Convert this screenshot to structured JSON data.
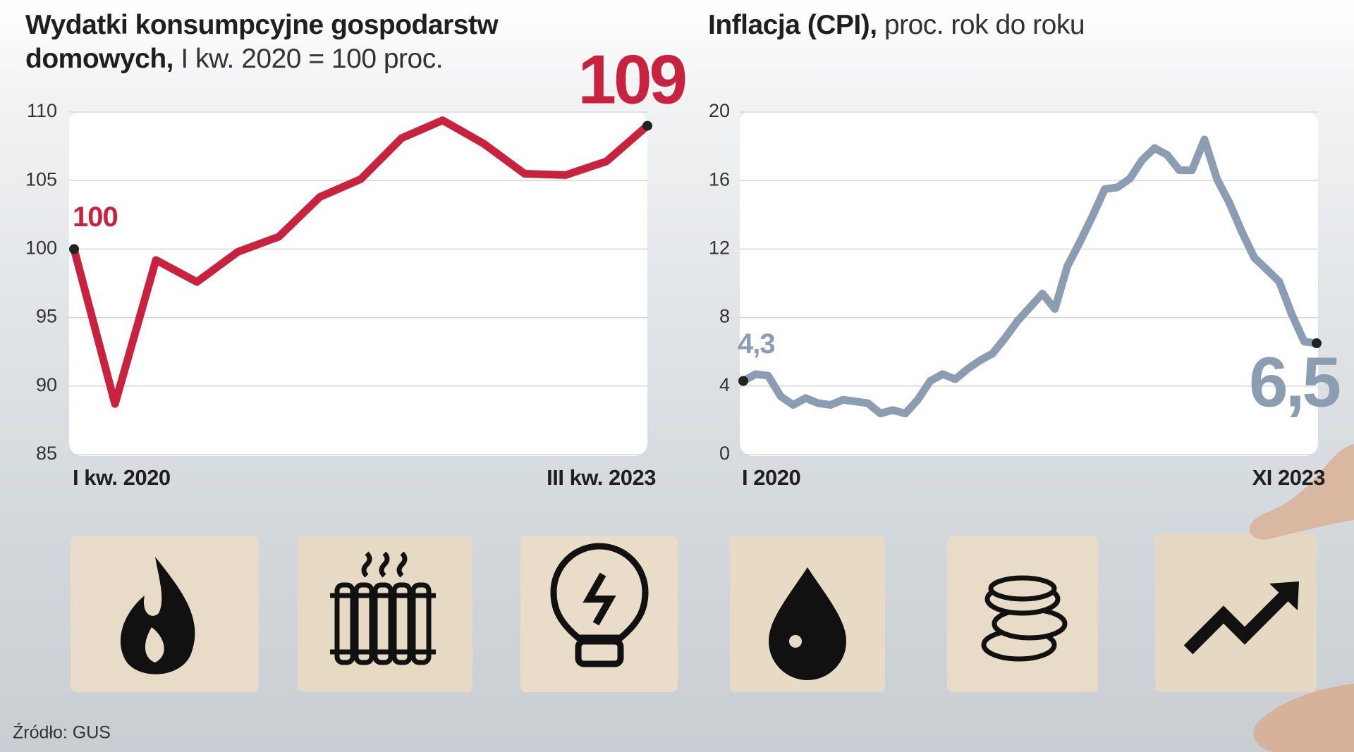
{
  "chart_data": [
    {
      "type": "line",
      "title": "Wydatki konsumpcyjne gospodarstw domowych,",
      "subtitle": "I kw. 2020 = 100 proc.",
      "categories": [
        "I kw. 2020",
        null,
        null,
        null,
        null,
        null,
        null,
        null,
        null,
        null,
        null,
        null,
        null,
        null,
        "III kw. 2023"
      ],
      "values": [
        100,
        88.7,
        99.2,
        97.6,
        99.8,
        100.9,
        103.8,
        105.1,
        108.1,
        109.4,
        107.7,
        105.5,
        105.4,
        106.4,
        109
      ],
      "value_labels": [
        "100",
        null,
        null,
        null,
        null,
        null,
        null,
        null,
        null,
        null,
        null,
        null,
        null,
        null,
        "109"
      ],
      "color": "#c8223f",
      "ylim": [
        85,
        110
      ],
      "yticks": [
        85,
        90,
        95,
        100,
        105,
        110
      ],
      "grid": true
    },
    {
      "type": "line",
      "title": "Inflacja (CPI),",
      "subtitle": "proc. rok do roku",
      "categories": [
        "I 2020",
        null,
        null,
        null,
        null,
        null,
        null,
        null,
        null,
        null,
        null,
        null,
        null,
        null,
        null,
        null,
        null,
        null,
        null,
        null,
        null,
        null,
        null,
        null,
        null,
        null,
        null,
        null,
        null,
        null,
        null,
        null,
        null,
        null,
        null,
        null,
        null,
        null,
        null,
        null,
        null,
        null,
        null,
        null,
        null,
        null,
        "XI 2023"
      ],
      "values": [
        4.3,
        4.7,
        4.6,
        3.4,
        2.9,
        3.3,
        3.0,
        2.9,
        3.2,
        3.1,
        3.0,
        2.4,
        2.6,
        2.4,
        3.2,
        4.3,
        4.7,
        4.4,
        5.0,
        5.5,
        5.9,
        6.8,
        7.8,
        8.6,
        9.4,
        8.5,
        11.0,
        12.4,
        13.9,
        15.5,
        15.6,
        16.1,
        17.2,
        17.9,
        17.5,
        16.6,
        16.6,
        18.4,
        16.1,
        14.7,
        13.0,
        11.5,
        10.8,
        10.1,
        8.2,
        6.6,
        6.5
      ],
      "value_labels": [
        "4,3",
        null,
        null,
        null,
        null,
        null,
        null,
        null,
        null,
        null,
        null,
        null,
        null,
        null,
        null,
        null,
        null,
        null,
        null,
        null,
        null,
        null,
        null,
        null,
        null,
        null,
        null,
        null,
        null,
        null,
        null,
        null,
        null,
        null,
        null,
        null,
        null,
        null,
        null,
        null,
        null,
        null,
        null,
        null,
        null,
        null,
        "6,5"
      ],
      "color": "#8b9db3",
      "ylim": [
        0,
        20
      ],
      "yticks": [
        0,
        4,
        8,
        12,
        16,
        20
      ],
      "grid": true
    }
  ],
  "source": "Źródło: GUS"
}
